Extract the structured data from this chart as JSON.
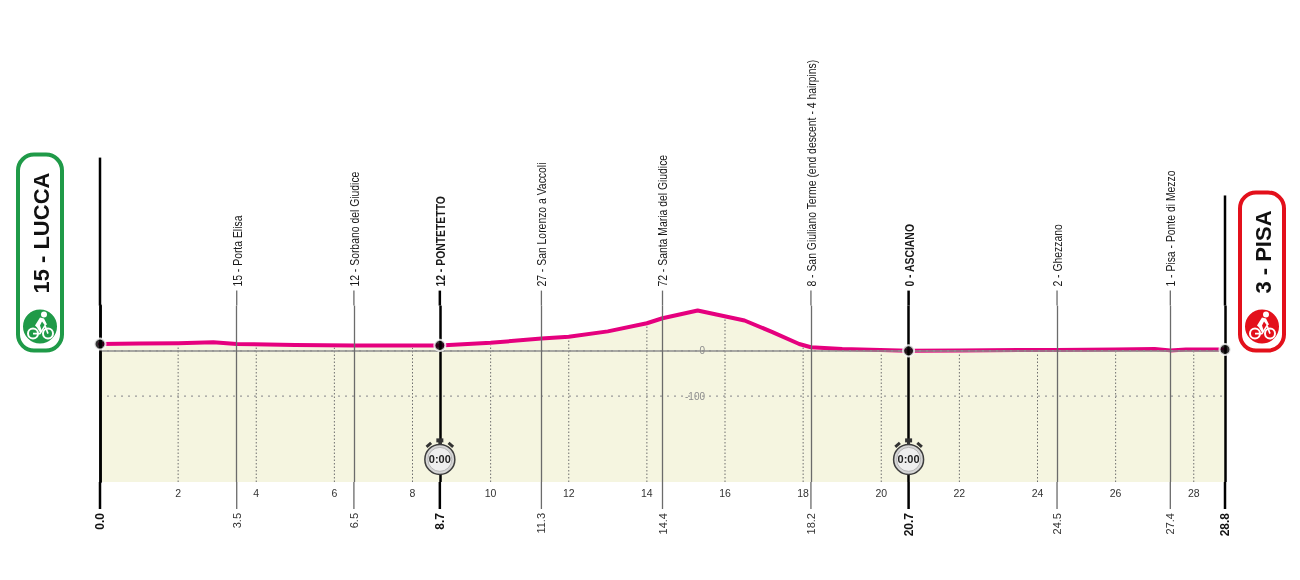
{
  "chart_data": {
    "type": "area",
    "x": [
      0,
      1,
      2,
      2.9,
      3.5,
      5,
      6.5,
      8.7,
      10,
      11.3,
      12,
      13,
      14,
      14.4,
      15.3,
      16.5,
      17.2,
      17.9,
      18.2,
      19,
      20.7,
      22,
      24.5,
      26,
      27,
      27.4,
      27.8,
      28.8
    ],
    "series": [
      {
        "type": "area",
        "color": "#e5007e",
        "values": [
          15,
          16,
          17,
          19,
          15,
          13,
          12,
          12,
          18,
          27,
          31,
          43,
          61,
          72,
          89,
          67,
          42,
          15,
          8,
          4,
          0,
          1,
          2,
          3,
          4,
          1,
          3,
          3
        ]
      },
      {
        "type": "scatter",
        "color": "#000000",
        "marker": "circle",
        "x": [
          0,
          8.7,
          20.7,
          28.8
        ],
        "values": [
          15,
          12,
          0,
          3
        ]
      }
    ],
    "xlim": [
      0,
      28.8
    ],
    "xticks": [
      2,
      4,
      6,
      8,
      10,
      12,
      14,
      16,
      18,
      20,
      22,
      24,
      26,
      28
    ],
    "ylim": [
      -290,
      100
    ],
    "yticks": [
      -100,
      0
    ],
    "grid": true,
    "bands": [
      {
        "axis": "y",
        "from": -290,
        "to": 0,
        "color": "#f5f5e0"
      }
    ],
    "ref_lines": [
      {
        "axis": "x",
        "value": 0,
        "label": "15 - LUCCA",
        "color": "#000000"
      },
      {
        "axis": "x",
        "value": 3.5,
        "label": "15 - Porta Elisa",
        "color": "#6b6b6b"
      },
      {
        "axis": "x",
        "value": 6.5,
        "label": "12 - Sorbano del Giudice",
        "color": "#6b6b6b"
      },
      {
        "axis": "x",
        "value": 8.7,
        "label": "12 - PONTETETTO",
        "color": "#000000"
      },
      {
        "axis": "x",
        "value": 11.3,
        "label": "27 - San Lorenzo a Vaccoli",
        "color": "#6b6b6b"
      },
      {
        "axis": "x",
        "value": 14.4,
        "label": "72 - Santa Maria del Giudice",
        "color": "#6b6b6b"
      },
      {
        "axis": "x",
        "value": 18.2,
        "label": "8 - San Giuliano Terme (end descent - 4 hairpins)",
        "color": "#6b6b6b"
      },
      {
        "axis": "x",
        "value": 20.7,
        "label": "0 - ASCIANO",
        "color": "#000000"
      },
      {
        "axis": "x",
        "value": 24.5,
        "label": "2 - Ghezzano",
        "color": "#6b6b6b"
      },
      {
        "axis": "x",
        "value": 27.4,
        "label": "1 - Pisa - Ponte di Mezzo",
        "color": "#6b6b6b"
      },
      {
        "axis": "x",
        "value": 28.8,
        "label": "3 - PISA",
        "color": "#000000"
      }
    ],
    "annotations": [
      {
        "text": "0:00",
        "x": 8.7,
        "y": -240
      },
      {
        "text": "0:00",
        "x": 20.7,
        "y": -240
      },
      {
        "text": "0.0",
        "x": 0,
        "y": -290
      },
      {
        "text": "3.5",
        "x": 3.5,
        "y": -290
      },
      {
        "text": "6.5",
        "x": 6.5,
        "y": -290
      },
      {
        "text": "8.7",
        "x": 8.7,
        "y": -290
      },
      {
        "text": "11.3",
        "x": 11.3,
        "y": -290
      },
      {
        "text": "14.4",
        "x": 14.4,
        "y": -290
      },
      {
        "text": "18.2",
        "x": 18.2,
        "y": -290
      },
      {
        "text": "20.7",
        "x": 20.7,
        "y": -290
      },
      {
        "text": "24.5",
        "x": 24.5,
        "y": -290
      },
      {
        "text": "27.4",
        "x": 27.4,
        "y": -290
      },
      {
        "text": "28.8",
        "x": 28.8,
        "y": -290
      }
    ]
  }
}
